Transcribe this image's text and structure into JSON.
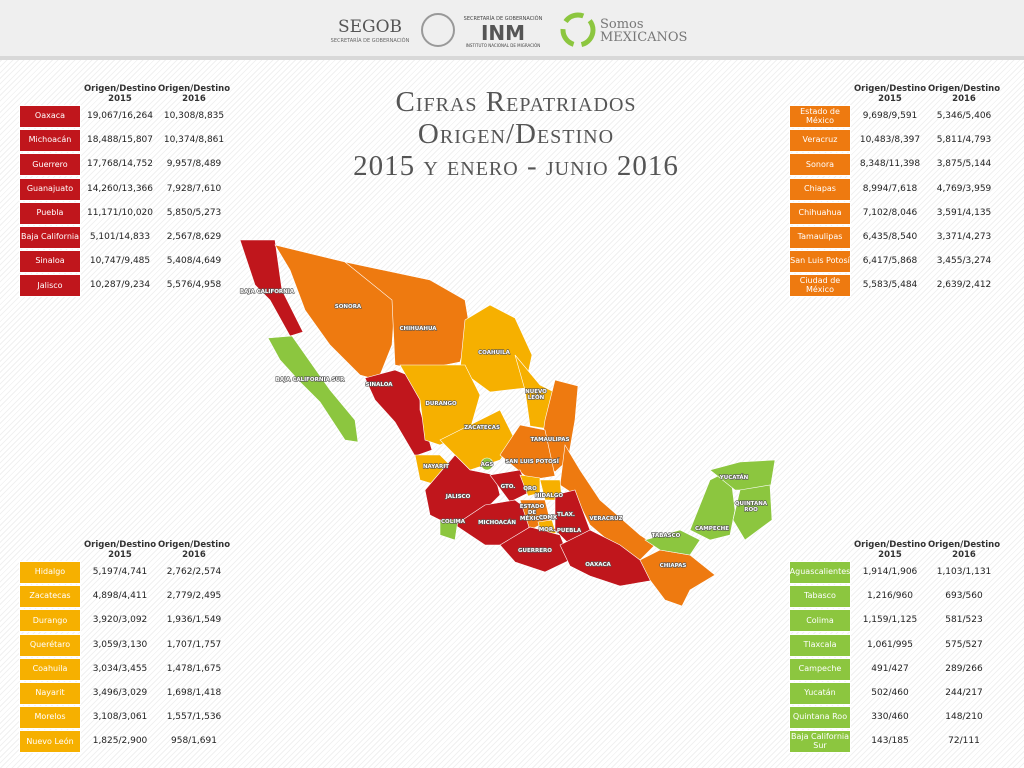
{
  "header": {
    "segob": "SEGOB",
    "segob_sub": "SECRETARÍA DE GOBERNACIÓN",
    "inm_top": "SECRETARÍA DE GOBERNACIÓN",
    "inm": "INM",
    "inm_sub": "INSTITUTO NACIONAL DE MIGRACIÓN",
    "somos": "Somos",
    "mexicanos": "MEXICANOS"
  },
  "title": [
    "Cifras Repatriados",
    "Origen/Destino",
    "2015 y enero - junio 2016"
  ],
  "tables": [
    {
      "color": "#c0161c",
      "headers": [
        [
          "Origen/Destino",
          "2015"
        ],
        [
          "Origen/Destino",
          "2016"
        ]
      ],
      "rows": [
        [
          "Oaxaca",
          "19,067/16,264",
          "10,308/8,835"
        ],
        [
          "Michoacán",
          "18,488/15,807",
          "10,374/8,861"
        ],
        [
          "Guerrero",
          "17,768/14,752",
          "9,957/8,489"
        ],
        [
          "Guanajuato",
          "14,260/13,366",
          "7,928/7,610"
        ],
        [
          "Puebla",
          "11,171/10,020",
          "5,850/5,273"
        ],
        [
          "Baja California",
          "5,101/14,833",
          "2,567/8,629"
        ],
        [
          "Sinaloa",
          "10,747/9,485",
          "5,408/4,649"
        ],
        [
          "Jalisco",
          "10,287/9,234",
          "5,576/4,958"
        ]
      ]
    },
    {
      "color": "#ee7a10",
      "headers": [
        [
          "Origen/Destino",
          "2015"
        ],
        [
          "Origen/Destino",
          "2016"
        ]
      ],
      "rows": [
        [
          "Estado de México",
          "9,698/9,591",
          "5,346/5,406"
        ],
        [
          "Veracruz",
          "10,483/8,397",
          "5,811/4,793"
        ],
        [
          "Sonora",
          "8,348/11,398",
          "3,875/5,144"
        ],
        [
          "Chiapas",
          "8,994/7,618",
          "4,769/3,959"
        ],
        [
          "Chihuahua",
          "7,102/8,046",
          "3,591/4,135"
        ],
        [
          "Tamaulipas",
          "6,435/8,540",
          "3,371/4,273"
        ],
        [
          "San Luis Potosí",
          "6,417/5,868",
          "3,455/3,274"
        ],
        [
          "Ciudad de México",
          "5,583/5,484",
          "2,639/2,412"
        ]
      ]
    },
    {
      "color": "#f6b000",
      "headers": [
        [
          "Origen/Destino",
          "2015"
        ],
        [
          "Origen/Destino",
          "2016"
        ]
      ],
      "rows": [
        [
          "Hidalgo",
          "5,197/4,741",
          "2,762/2,574"
        ],
        [
          "Zacatecas",
          "4,898/4,411",
          "2,779/2,495"
        ],
        [
          "Durango",
          "3,920/3,092",
          "1,936/1,549"
        ],
        [
          "Querétaro",
          "3,059/3,130",
          "1,707/1,757"
        ],
        [
          "Coahuila",
          "3,034/3,455",
          "1,478/1,675"
        ],
        [
          "Nayarit",
          "3,496/3,029",
          "1,698/1,418"
        ],
        [
          "Morelos",
          "3,108/3,061",
          "1,557/1,536"
        ],
        [
          "Nuevo León",
          "1,825/2,900",
          "958/1,691"
        ]
      ]
    },
    {
      "color": "#8cc63f",
      "headers": [
        [
          "Origen/Destino",
          "2015"
        ],
        [
          "Origen/Destino",
          "2016"
        ]
      ],
      "rows": [
        [
          "Aguascalientes",
          "1,914/1,906",
          "1,103/1,131"
        ],
        [
          "Tabasco",
          "1,216/960",
          "693/560"
        ],
        [
          "Colima",
          "1,159/1,125",
          "581/523"
        ],
        [
          "Tlaxcala",
          "1,061/995",
          "575/527"
        ],
        [
          "Campeche",
          "491/427",
          "289/266"
        ],
        [
          "Yucatán",
          "502/460",
          "244/217"
        ],
        [
          "Quintana Roo",
          "330/460",
          "148/210"
        ],
        [
          "Baja California Sur",
          "143/185",
          "72/111"
        ]
      ]
    }
  ],
  "map_labels": [
    [
      "BAJA CALIFORNIA"
    ],
    [
      "SONORA"
    ],
    [
      "CHIHUAHUA"
    ],
    [
      "COAHUILA"
    ],
    [
      "BAJA CALIFORNIA SUR"
    ],
    [
      "SINALOA"
    ],
    [
      "NUEVO",
      "LEÓN"
    ],
    [
      "DURANGO"
    ],
    [
      "ZACATECAS"
    ],
    [
      "TAMAULIPAS"
    ],
    [
      "SAN LUIS POTOSÍ"
    ],
    [
      "NAYARIT"
    ],
    [
      "AGS"
    ],
    [
      "JALISCO"
    ],
    [
      "GTO."
    ],
    [
      "QRO"
    ],
    [
      "HIDALGO"
    ],
    [
      "ESTADO",
      "DE",
      "MÉXICO"
    ],
    [
      "CDMX"
    ],
    [
      "TLAX."
    ],
    [
      "MOR."
    ],
    [
      "PUEBLA"
    ],
    [
      "VERACRUZ"
    ],
    [
      "COLIMA"
    ],
    [
      "MICHOACÁN"
    ],
    [
      "GUERRERO"
    ],
    [
      "OAXACA"
    ],
    [
      "TABASCO"
    ],
    [
      "CAMPECHE"
    ],
    [
      "YUCATÁN"
    ],
    [
      "QUINTANA",
      "ROO"
    ],
    [
      "CHIAPAS"
    ]
  ]
}
